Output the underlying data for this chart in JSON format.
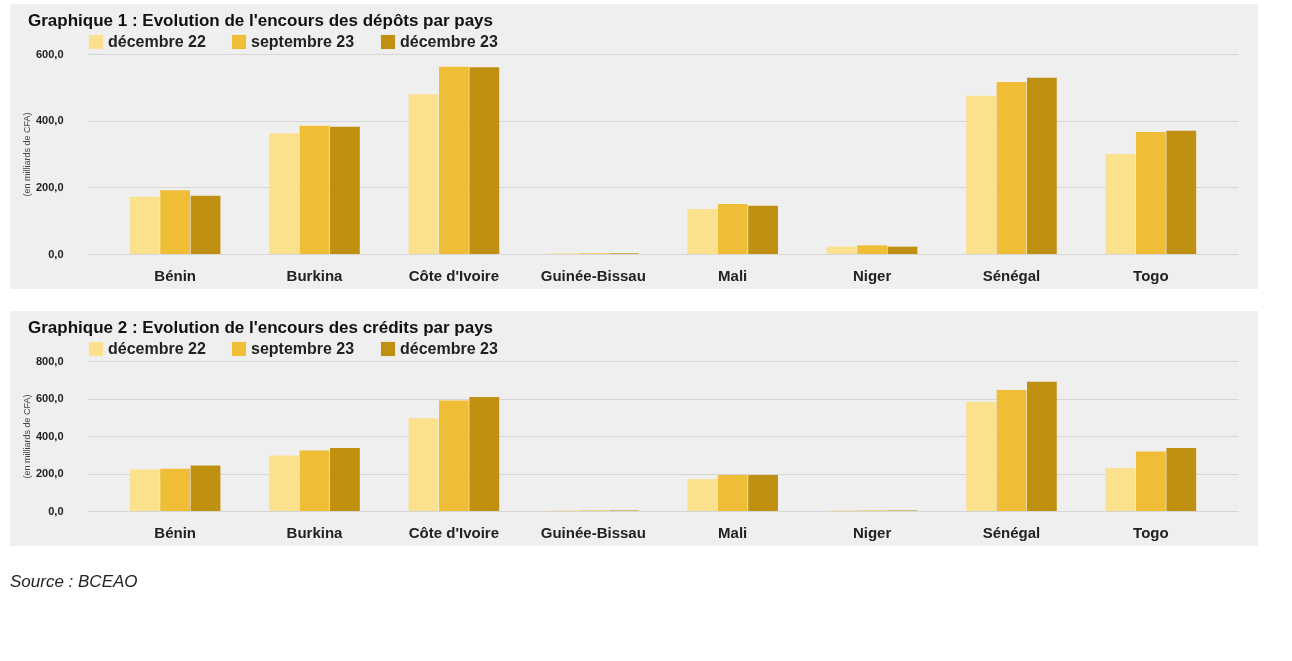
{
  "chart_data": [
    {
      "type": "bar",
      "title": "Graphique 1 : Evolution de l'encours des dépôts par pays",
      "ylabel": "(en milliards de CFA)",
      "categories": [
        "Bénin",
        "Burkina",
        "Côte d'Ivoire",
        "Guinée-Bissau",
        "Mali",
        "Niger",
        "Sénégal",
        "Togo"
      ],
      "series": [
        {
          "name": "décembre 22",
          "color": "#fbe08e",
          "values": [
            172,
            362,
            479,
            2,
            135,
            22,
            475,
            300
          ]
        },
        {
          "name": "septembre 23",
          "color": "#f0be36",
          "values": [
            191,
            385,
            562,
            2,
            150,
            26,
            516,
            366
          ]
        },
        {
          "name": "décembre 23",
          "color": "#c09010",
          "values": [
            175,
            382,
            560,
            2,
            145,
            22,
            529,
            370
          ]
        }
      ],
      "ylim": [
        0,
        600
      ],
      "yticks": [
        {
          "value": 0,
          "label": "0,0"
        },
        {
          "value": 200,
          "label": "200,0"
        },
        {
          "value": 400,
          "label": "400,0"
        },
        {
          "value": 600,
          "label": "600,0"
        }
      ],
      "grid": "y",
      "legend": "top"
    },
    {
      "type": "bar",
      "title": "Graphique 2 : Evolution de l'encours des crédits par pays",
      "ylabel": "(en milliards de CFA)",
      "categories": [
        "Bénin",
        "Burkina",
        "Côte d'Ivoire",
        "Guinée-Bissau",
        "Mali",
        "Niger",
        "Sénégal",
        "Togo"
      ],
      "series": [
        {
          "name": "décembre 22",
          "color": "#fbe08e",
          "values": [
            221,
            296,
            495,
            3,
            170,
            3,
            583,
            230
          ]
        },
        {
          "name": "septembre 23",
          "color": "#f0be36",
          "values": [
            225,
            323,
            590,
            3,
            192,
            3,
            645,
            318
          ]
        },
        {
          "name": "décembre 23",
          "color": "#c09010",
          "values": [
            243,
            336,
            608,
            3,
            192,
            3,
            689,
            336
          ]
        }
      ],
      "ylim": [
        0,
        800
      ],
      "yticks": [
        {
          "value": 0,
          "label": "0,0"
        },
        {
          "value": 200,
          "label": "200,0"
        },
        {
          "value": 400,
          "label": "400,0"
        },
        {
          "value": 600,
          "label": "600,0"
        },
        {
          "value": 800,
          "label": "800,0"
        }
      ],
      "grid": "y",
      "legend": "top",
      "annotations": [
        "Source : BCEAO"
      ]
    }
  ]
}
